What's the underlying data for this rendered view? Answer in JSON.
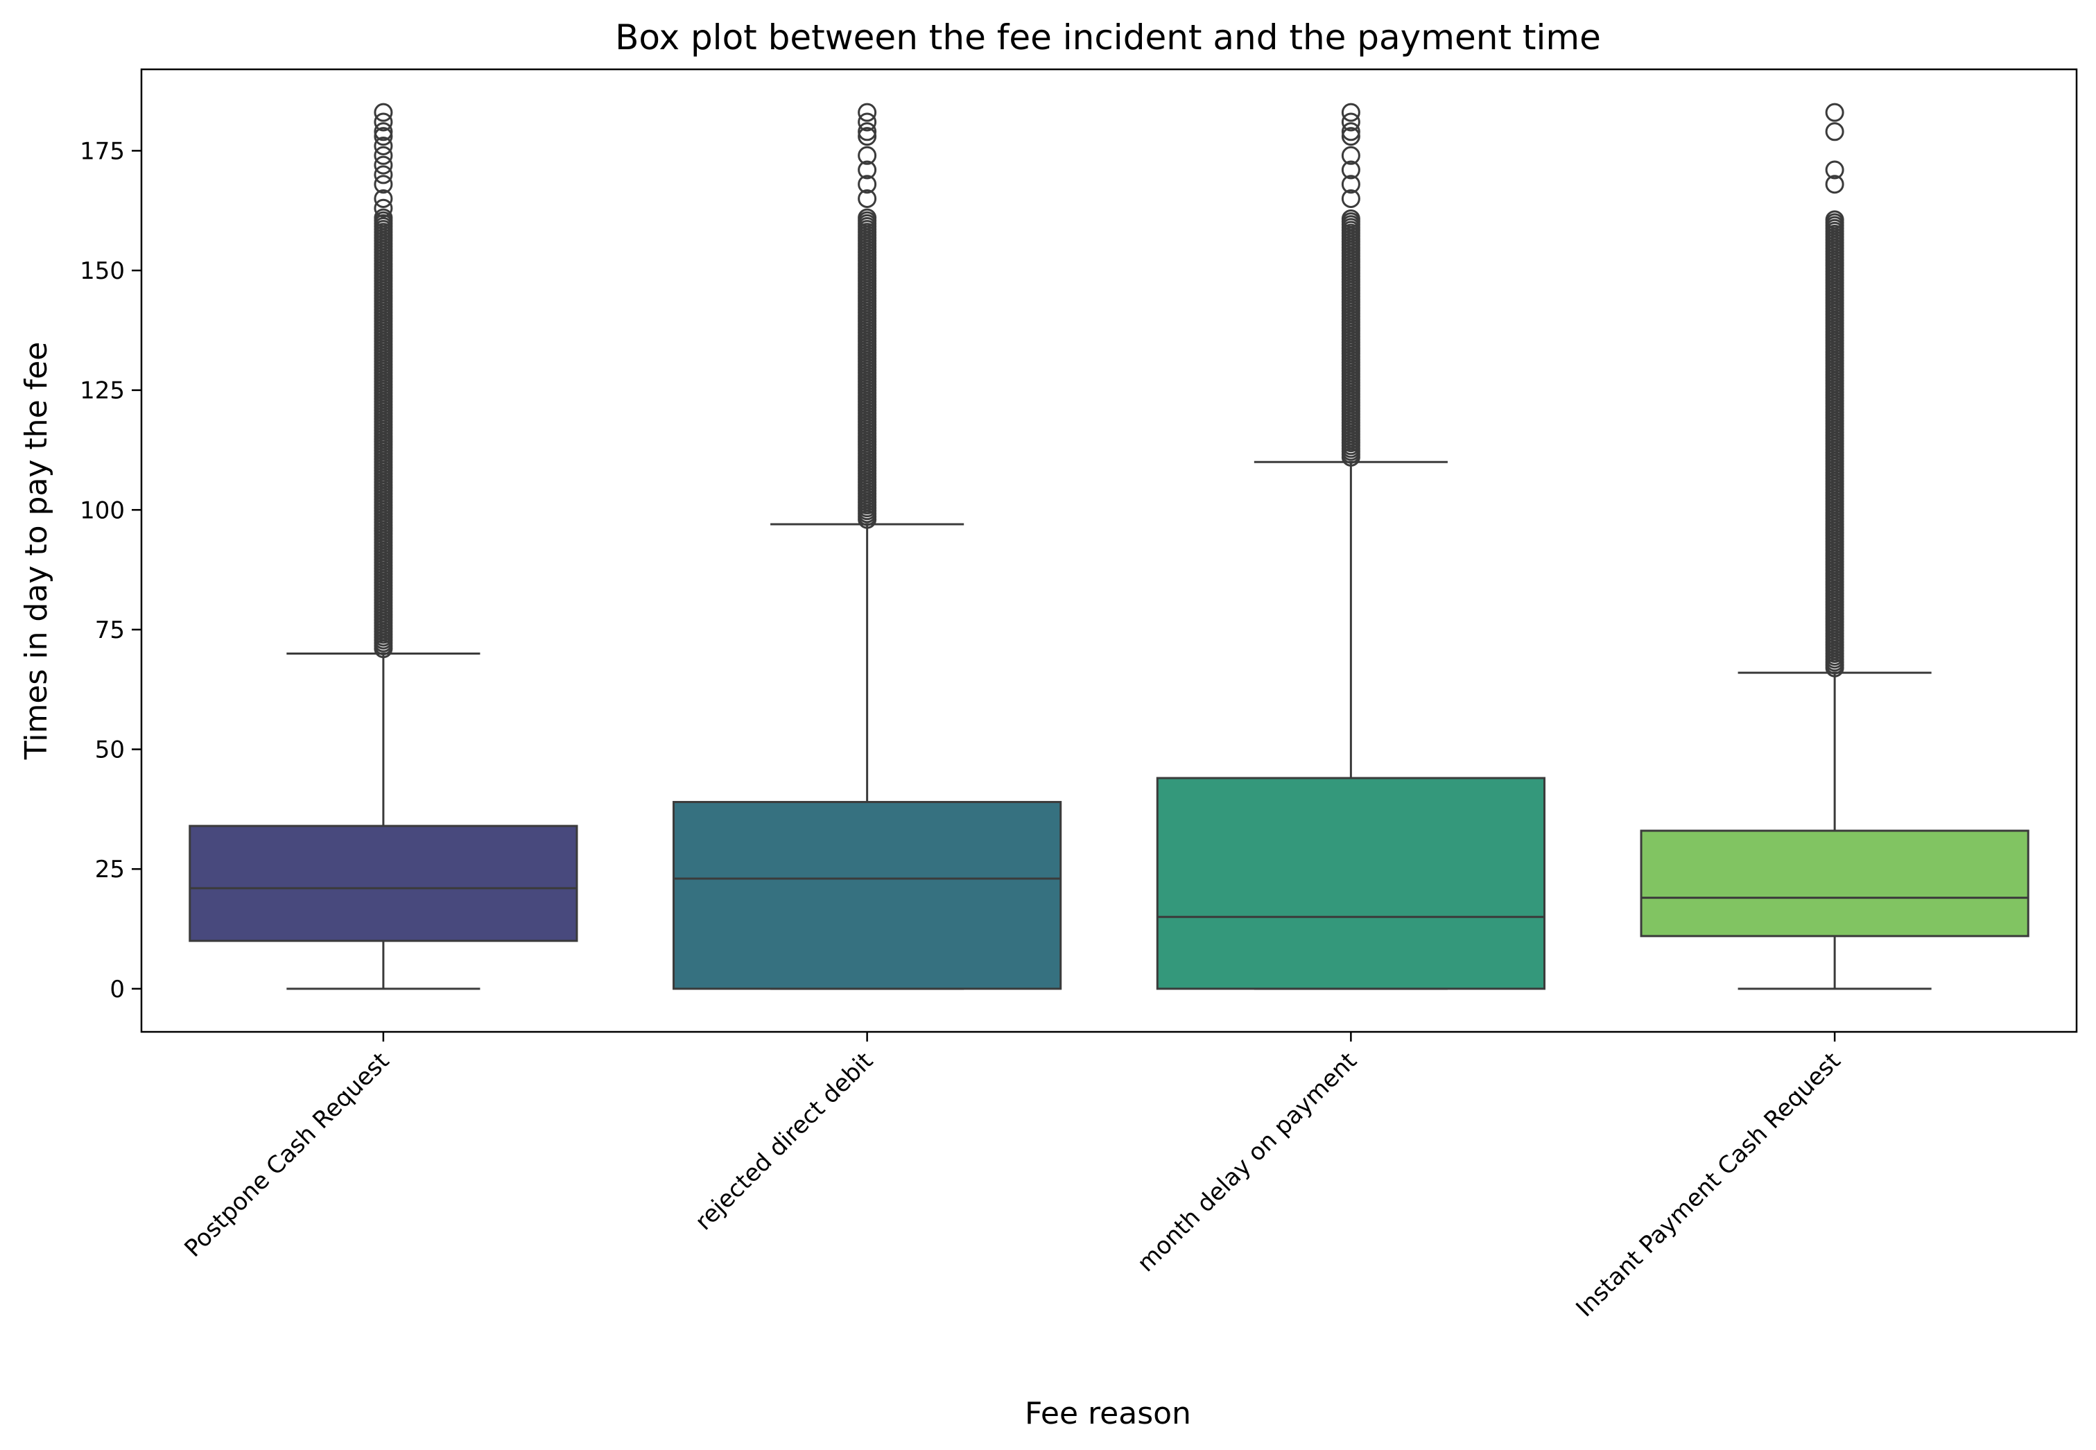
{
  "chart_data": {
    "type": "boxplot",
    "title": "Box plot between the fee incident and the payment time",
    "xlabel": "Fee reason",
    "ylabel": "Times in day to pay the fee",
    "ylim": [
      -9,
      192
    ],
    "yticks": [
      0,
      25,
      50,
      75,
      100,
      125,
      150,
      175
    ],
    "grid": false,
    "categories": [
      "Postpone Cash Request",
      "rejected direct debit",
      "month delay on payment",
      "Instant Payment Cash Request"
    ],
    "boxes": [
      {
        "category": "Postpone Cash Request",
        "color": "#48497d",
        "whisker_low": 0,
        "q1": 10,
        "median": 21,
        "q3": 34,
        "whisker_high": 70,
        "outliers_dense_range": [
          71,
          161
        ],
        "outliers": [
          163,
          165,
          168,
          170,
          172,
          174,
          176,
          178,
          179,
          181,
          183
        ]
      },
      {
        "category": "rejected direct debit",
        "color": "#367180",
        "whisker_low": 0,
        "q1": 0,
        "median": 23,
        "q3": 39,
        "whisker_high": 97,
        "outliers_dense_range": [
          98,
          161
        ],
        "outliers": [
          165,
          168,
          171,
          174,
          178,
          179,
          181,
          183
        ]
      },
      {
        "category": "month delay on payment",
        "color": "#34987b",
        "whisker_low": 0,
        "q1": 0,
        "median": 15,
        "q3": 44,
        "whisker_high": 110,
        "outliers_dense_range": [
          111,
          161
        ],
        "outliers": [
          165,
          168,
          171,
          174,
          178,
          179,
          181,
          183
        ]
      },
      {
        "category": "Instant Payment Cash Request",
        "color": "#81c462",
        "whisker_low": 0,
        "q1": 11,
        "median": 19,
        "q3": 33,
        "whisker_high": 66,
        "outliers_dense_range": [
          67,
          161
        ],
        "outliers": [
          168,
          171,
          179,
          183
        ]
      }
    ]
  }
}
